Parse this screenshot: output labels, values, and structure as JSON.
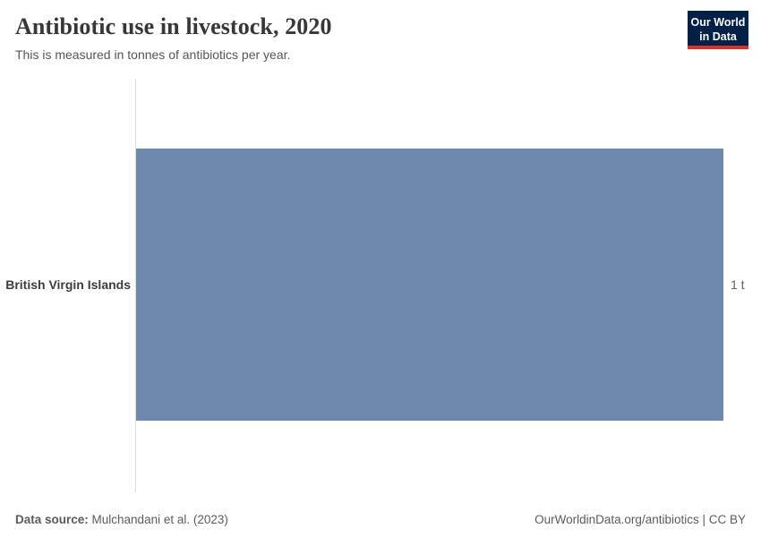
{
  "header": {
    "title": "Antibiotic use in livestock, 2020",
    "subtitle": "This is measured in tonnes of antibiotics per year.",
    "logo": {
      "line1": "Our World",
      "line2": "in Data",
      "bg_color": "#002147",
      "stripe_color": "#dc3125"
    }
  },
  "chart_data": {
    "type": "bar",
    "orientation": "horizontal",
    "title": "Antibiotic use in livestock, 2020",
    "subtitle": "This is measured in tonnes of antibiotics per year.",
    "categories": [
      "British Virgin Islands"
    ],
    "values": [
      1
    ],
    "value_labels": [
      "1 t"
    ],
    "unit": "tonnes of antibiotics per year",
    "xlim": [
      0,
      1
    ],
    "grid": false,
    "legend": "none",
    "bar_color": "#6d87ad",
    "axis_line_color": "#dedede"
  },
  "footer": {
    "source_label": "Data source:",
    "source_value": " Mulchandani et al. (2023)",
    "link": "OurWorldinData.org/antibiotics | CC BY"
  }
}
